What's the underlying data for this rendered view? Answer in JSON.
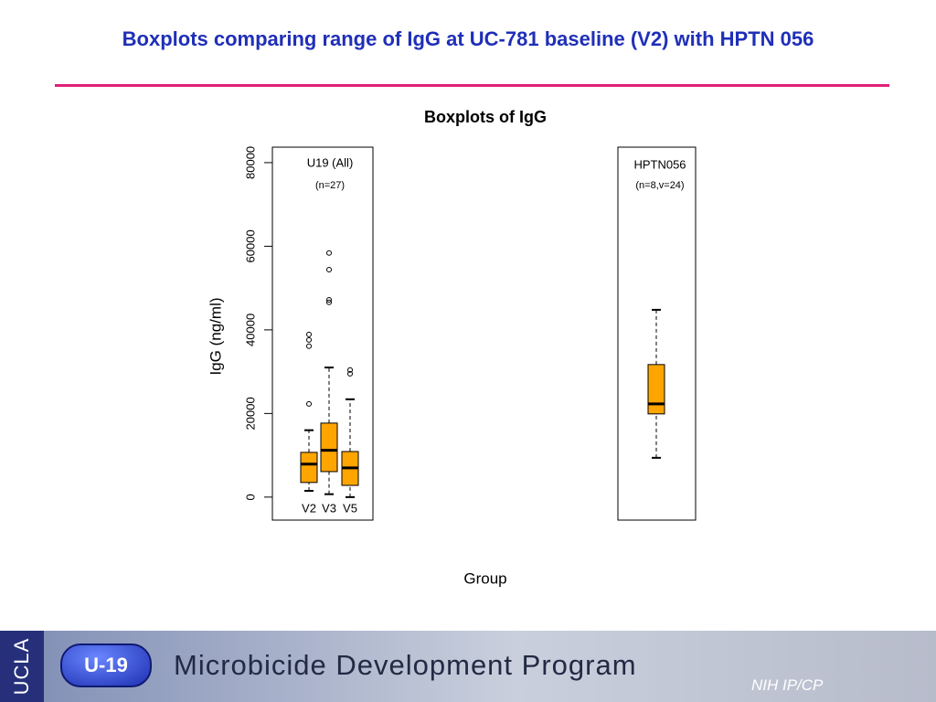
{
  "header": {
    "title": "Boxplots comparing range of IgG at UC-781 baseline (V2) with HPTN 056"
  },
  "chart_data": {
    "type": "box",
    "title": "Boxplots of IgG",
    "xlabel": "Group",
    "ylabel": "IgG (ng/ml)",
    "panels": [
      {
        "label": "U19 (All)",
        "note": "(n=27)"
      },
      {
        "label": "HPTN056",
        "note": "(n=8,v=24)"
      }
    ],
    "categories": [
      "V2",
      "V3",
      "V5",
      null
    ],
    "color": "#ffa500",
    "boxes": [
      {
        "whislo": 1500,
        "q1": 3500,
        "med": 7900,
        "q3": 10700,
        "whishi": 16000,
        "fliers": [
          22300,
          36100,
          37600,
          38900
        ]
      },
      {
        "whislo": 700,
        "q1": 6100,
        "med": 11200,
        "q3": 17700,
        "whishi": 31000,
        "fliers": [
          46600,
          47200,
          54400,
          58400
        ]
      },
      {
        "whislo": 0,
        "q1": 2800,
        "med": 7000,
        "q3": 10900,
        "whishi": 23400,
        "fliers": [
          29500,
          30400
        ]
      },
      {
        "whislo": 9400,
        "q1": 19900,
        "med": 22300,
        "q3": 31700,
        "whishi": 44800,
        "fliers": []
      }
    ],
    "ylim": [
      -5500,
      83700
    ],
    "yticks": [
      0,
      20000,
      40000,
      60000,
      80000
    ]
  },
  "footer": {
    "badge": "U-19",
    "institution": "UCLA",
    "program": "Microbicide Development Program",
    "sponsor": "NIH IP/CP"
  }
}
